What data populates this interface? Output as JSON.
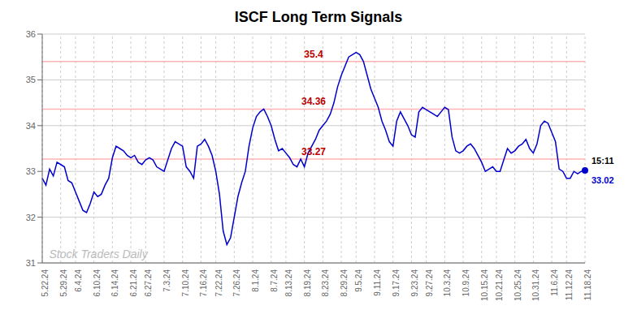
{
  "chart_data": {
    "type": "line",
    "title": "ISCF Long Term Signals",
    "categories": [
      "5.22.24",
      null,
      null,
      null,
      null,
      "5.29.24",
      null,
      null,
      null,
      "6.4.24",
      null,
      null,
      null,
      null,
      "6.10.24",
      null,
      null,
      null,
      null,
      "6.14.24",
      null,
      null,
      null,
      null,
      "6.21.24",
      null,
      null,
      null,
      "6.27.24",
      null,
      null,
      null,
      null,
      "7.3.24",
      null,
      null,
      null,
      null,
      "7.10.24",
      null,
      null,
      null,
      null,
      "7.16.24",
      null,
      null,
      null,
      "7.22.24",
      null,
      null,
      null,
      null,
      "7.26.24",
      null,
      null,
      null,
      null,
      "8.1.24",
      null,
      null,
      null,
      null,
      "8.7.24",
      null,
      null,
      null,
      "8.13.24",
      null,
      null,
      null,
      null,
      "8.19.24",
      null,
      null,
      null,
      null,
      "8.23.24",
      null,
      null,
      null,
      null,
      "8.29.24",
      null,
      null,
      null,
      "9.5.24",
      null,
      null,
      null,
      null,
      "9.11.24",
      null,
      null,
      null,
      null,
      "9.17.24",
      null,
      null,
      null,
      null,
      "9.23.24",
      null,
      null,
      null,
      "9.27.24",
      null,
      null,
      null,
      null,
      "10.3.24",
      null,
      null,
      null,
      null,
      "10.9.24",
      null,
      null,
      null,
      null,
      "10.15.24",
      null,
      null,
      null,
      "10.21.24",
      null,
      null,
      null,
      null,
      "10.25.24",
      null,
      null,
      null,
      null,
      "10.31.24",
      null,
      null,
      null,
      null,
      "11.6.24",
      null,
      null,
      null,
      "11.12.24",
      null,
      null,
      null,
      null,
      "11.18.24"
    ],
    "values": [
      32.85,
      32.7,
      33.05,
      32.9,
      33.2,
      33.15,
      33.1,
      32.8,
      32.75,
      32.55,
      32.35,
      32.15,
      32.1,
      32.3,
      32.55,
      32.45,
      32.5,
      32.7,
      32.85,
      33.3,
      33.55,
      33.5,
      33.45,
      33.35,
      33.3,
      33.35,
      33.2,
      33.15,
      33.25,
      33.3,
      33.25,
      33.1,
      33.05,
      33.0,
      33.25,
      33.5,
      33.65,
      33.6,
      33.55,
      33.1,
      33.0,
      32.85,
      33.55,
      33.6,
      33.7,
      33.55,
      33.35,
      33.0,
      32.5,
      31.7,
      31.4,
      31.55,
      32.0,
      32.45,
      32.75,
      33.0,
      33.55,
      33.95,
      34.2,
      34.3,
      34.36,
      34.2,
      34.0,
      33.7,
      33.45,
      33.5,
      33.4,
      33.3,
      33.15,
      33.1,
      33.27,
      33.1,
      33.4,
      33.55,
      33.7,
      33.9,
      34.0,
      34.1,
      34.25,
      34.5,
      34.85,
      35.1,
      35.3,
      35.5,
      35.55,
      35.6,
      35.55,
      35.4,
      35.1,
      34.8,
      34.6,
      34.4,
      34.1,
      33.9,
      33.65,
      33.55,
      34.1,
      34.3,
      34.15,
      34.0,
      33.8,
      33.75,
      34.3,
      34.4,
      34.35,
      34.3,
      34.25,
      34.2,
      34.3,
      34.4,
      34.35,
      33.75,
      33.45,
      33.4,
      33.45,
      33.55,
      33.6,
      33.5,
      33.35,
      33.2,
      33.0,
      33.05,
      33.1,
      33.0,
      33.0,
      33.25,
      33.5,
      33.4,
      33.45,
      33.55,
      33.6,
      33.7,
      33.5,
      33.4,
      33.6,
      34.0,
      34.1,
      34.05,
      33.85,
      33.65,
      33.05,
      33.0,
      32.85,
      32.85,
      33.0,
      32.95,
      33.0,
      33.02
    ],
    "color": "#0000cc",
    "ylim": [
      31,
      36
    ],
    "yticks": [
      31,
      32,
      33,
      34,
      35,
      36
    ],
    "grid": true,
    "hlines": [
      {
        "value": 35.4,
        "label": "35.4"
      },
      {
        "value": 34.36,
        "label": "34.36"
      },
      {
        "value": 33.27,
        "label": "33.27"
      }
    ],
    "hline_color": "#ffb3b3",
    "hline_label_color": "#bb0000",
    "end_label": "15:11",
    "end_value_label": "33.02",
    "watermark": "Stock Traders Daily",
    "watermark_color": "#bbbbbb"
  }
}
